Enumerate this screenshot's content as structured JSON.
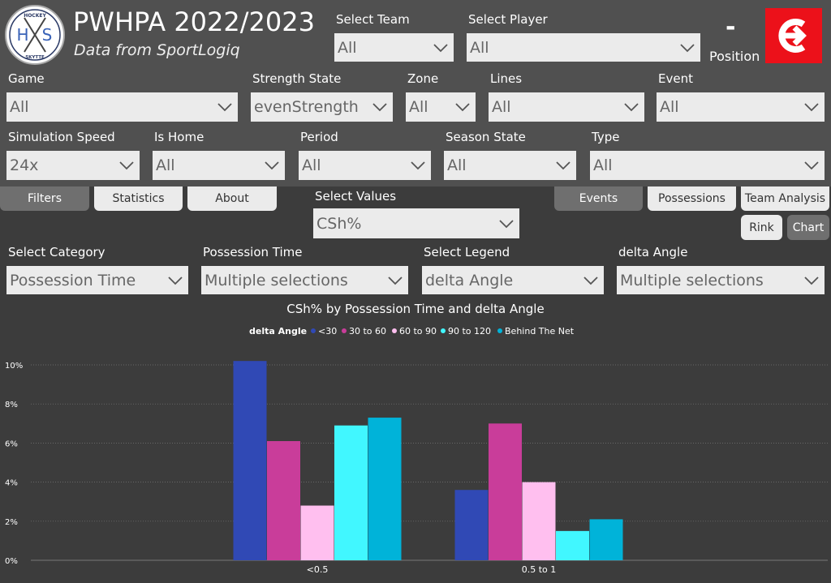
{
  "header": {
    "title": "PWHPA 2022/2023",
    "subtitle": "Data from SportLogiq",
    "logo_top": "HOCKEY",
    "logo_left": "H",
    "logo_right": "S",
    "logo_bottom": "SKYTTE",
    "position_value": "-",
    "position_label": "Position"
  },
  "filters": {
    "select_team": {
      "label": "Select Team",
      "value": "All"
    },
    "select_player": {
      "label": "Select Player",
      "value": "All"
    },
    "game": {
      "label": "Game",
      "value": "All"
    },
    "strength_state": {
      "label": "Strength State",
      "value": "evenStrength"
    },
    "zone": {
      "label": "Zone",
      "value": "All"
    },
    "lines": {
      "label": "Lines",
      "value": "All"
    },
    "event": {
      "label": "Event",
      "value": "All"
    },
    "simulation_speed": {
      "label": "Simulation Speed",
      "value": "24x"
    },
    "is_home": {
      "label": "Is Home",
      "value": "All"
    },
    "period": {
      "label": "Period",
      "value": "All"
    },
    "season_state": {
      "label": "Season State",
      "value": "All"
    },
    "type": {
      "label": "Type",
      "value": "All"
    }
  },
  "tabs": {
    "filters": "Filters",
    "statistics": "Statistics",
    "about": "About",
    "events": "Events",
    "possessions": "Possessions",
    "team_analysis": "Team Analysis",
    "rink": "Rink",
    "chart": "Chart"
  },
  "select_values": {
    "label": "Select Values",
    "value": "CSh%"
  },
  "controls": {
    "select_category": {
      "label": "Select Category",
      "value": "Possession Time"
    },
    "possession_time": {
      "label": "Possession Time",
      "value": "Multiple selections"
    },
    "select_legend": {
      "label": "Select Legend",
      "value": "delta Angle"
    },
    "delta_angle": {
      "label": "delta Angle",
      "value": "Multiple selections"
    }
  },
  "colors": {
    "header_bg": "#505050",
    "body_bg": "#3c3c3c",
    "dropdown_bg": "#ebebeb",
    "brand_red": "#ec111a"
  },
  "icons": {
    "dropdown": "chevron-down-icon",
    "brand": "scotiabank-logo-icon"
  },
  "chart_data": {
    "type": "bar",
    "title": "CSh% by Possession Time and delta Angle",
    "legend_title": "delta Angle",
    "legend_position": "top-center",
    "categories": [
      "<0.5",
      "0.5 to 1"
    ],
    "series": [
      {
        "name": "<30",
        "color": "#3049b5",
        "values": [
          10.2,
          3.6
        ]
      },
      {
        "name": "30 to 60",
        "color": "#c93d9a",
        "values": [
          6.1,
          7.0
        ]
      },
      {
        "name": "60 to 90",
        "color": "#ffbfef",
        "values": [
          2.8,
          4.0
        ]
      },
      {
        "name": "90 to 120",
        "color": "#41f7ff",
        "values": [
          6.9,
          1.5
        ]
      },
      {
        "name": "Behind The Net",
        "color": "#00b3d9",
        "values": [
          7.3,
          2.1
        ]
      }
    ],
    "y_ticks": [
      "0%",
      "2%",
      "4%",
      "6%",
      "8%",
      "10%"
    ],
    "y_tick_values": [
      0,
      2,
      4,
      6,
      8,
      10
    ],
    "ylim": [
      0,
      10.8
    ],
    "grid": true
  }
}
